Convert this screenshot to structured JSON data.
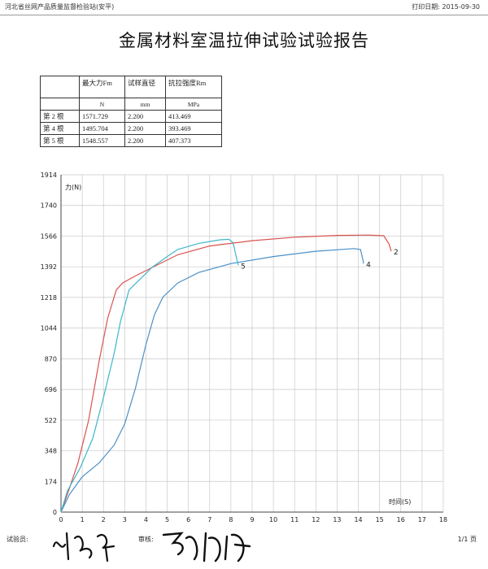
{
  "header": {
    "organization": "河北省丝网产品质量监督检验站(安平)",
    "print_date_label": "打印日期:",
    "print_date": "2015-09-30"
  },
  "report_title": "金属材料室温拉伸试验试验报告",
  "results_table": {
    "columns": [
      "",
      "最大力Fm",
      "试样直径",
      "抗拉强度Rm"
    ],
    "units": [
      "",
      "N",
      "mm",
      "MPa"
    ],
    "rows": [
      [
        "第 2 根",
        "1571.729",
        "2.200",
        "413.469"
      ],
      [
        "第 4 根",
        "1495.704",
        "2.200",
        "393.469"
      ],
      [
        "第 5 根",
        "1548.557",
        "2.200",
        "407.373"
      ]
    ]
  },
  "chart_data": {
    "type": "line",
    "ylabel": "力(N)",
    "xlabel": "时间(S)",
    "xlim": [
      0,
      18
    ],
    "ylim": [
      0,
      1914
    ],
    "x_ticks": [
      0,
      1,
      2,
      3,
      4,
      5,
      6,
      7,
      8,
      9,
      10,
      11,
      12,
      13,
      14,
      15,
      16,
      17,
      18
    ],
    "y_ticks": [
      0,
      174,
      348,
      522,
      696,
      870,
      1044,
      1218,
      1392,
      1566,
      1740,
      1914
    ],
    "grid": true,
    "series": [
      {
        "name": "2",
        "color": "#d9534f",
        "points": [
          [
            0,
            0
          ],
          [
            0.3,
            100
          ],
          [
            0.8,
            280
          ],
          [
            1.3,
            520
          ],
          [
            1.8,
            860
          ],
          [
            2.2,
            1100
          ],
          [
            2.6,
            1260
          ],
          [
            2.9,
            1300
          ],
          [
            3.5,
            1340
          ],
          [
            4.5,
            1400
          ],
          [
            5.5,
            1460
          ],
          [
            7,
            1510
          ],
          [
            9,
            1540
          ],
          [
            11,
            1560
          ],
          [
            13,
            1570
          ],
          [
            14.5,
            1572
          ],
          [
            15.2,
            1568
          ],
          [
            15.45,
            1520
          ],
          [
            15.55,
            1480
          ]
        ]
      },
      {
        "name": "4",
        "color": "#4a90c8",
        "points": [
          [
            0,
            0
          ],
          [
            0.4,
            100
          ],
          [
            1,
            200
          ],
          [
            1.8,
            280
          ],
          [
            2.5,
            380
          ],
          [
            3,
            500
          ],
          [
            3.5,
            700
          ],
          [
            4,
            950
          ],
          [
            4.4,
            1120
          ],
          [
            4.8,
            1220
          ],
          [
            5.5,
            1300
          ],
          [
            6.5,
            1360
          ],
          [
            8,
            1410
          ],
          [
            10,
            1450
          ],
          [
            12,
            1480
          ],
          [
            13.8,
            1495
          ],
          [
            14.1,
            1490
          ],
          [
            14.2,
            1440
          ],
          [
            14.25,
            1410
          ]
        ]
      },
      {
        "name": "5",
        "color": "#3fb6c9",
        "points": [
          [
            0,
            0
          ],
          [
            0.3,
            120
          ],
          [
            0.9,
            250
          ],
          [
            1.5,
            420
          ],
          [
            2,
            650
          ],
          [
            2.5,
            900
          ],
          [
            2.8,
            1080
          ],
          [
            3.2,
            1260
          ],
          [
            3.8,
            1330
          ],
          [
            4.3,
            1390
          ],
          [
            5,
            1450
          ],
          [
            5.5,
            1490
          ],
          [
            6.5,
            1525
          ],
          [
            7.5,
            1545
          ],
          [
            7.9,
            1548
          ],
          [
            8.1,
            1530
          ],
          [
            8.25,
            1450
          ],
          [
            8.35,
            1400
          ]
        ]
      }
    ]
  },
  "footer": {
    "tester_label": "试验员:",
    "reviewer_label": "审核:",
    "page": "1/1 页"
  }
}
